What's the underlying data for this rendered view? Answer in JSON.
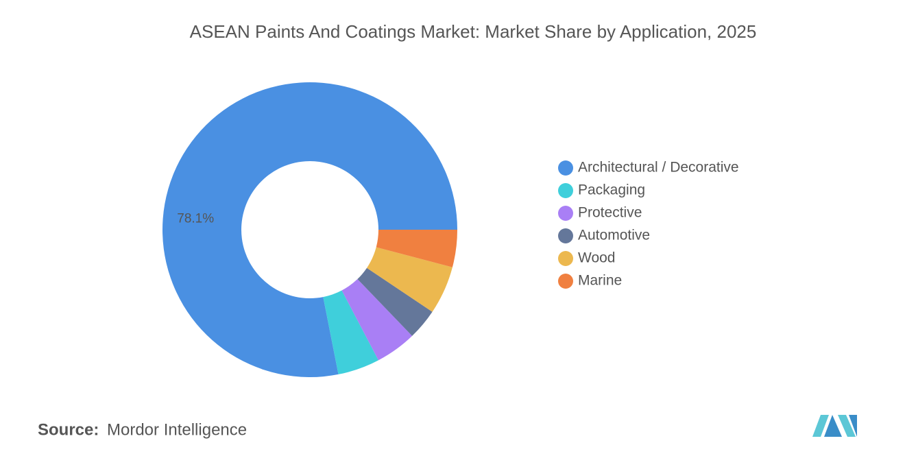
{
  "chart_data": {
    "type": "donut",
    "title": "ASEAN Paints And Coatings Market: Market Share by Application, 2025",
    "categories": [
      "Architectural / Decorative",
      "Packaging",
      "Protective",
      "Automotive",
      "Wood",
      "Marine"
    ],
    "values": [
      78.1,
      4.6,
      4.5,
      3.4,
      5.3,
      4.1
    ],
    "value_labels": [
      "78.1%",
      null,
      null,
      null,
      null,
      null
    ],
    "colors": [
      "#4a90e2",
      "#3fcfdb",
      "#a97ff5",
      "#64779a",
      "#ecb84f",
      "#f08040"
    ],
    "legend": "right"
  },
  "source": {
    "label": "Source:",
    "text": "Mordor Intelligence"
  }
}
